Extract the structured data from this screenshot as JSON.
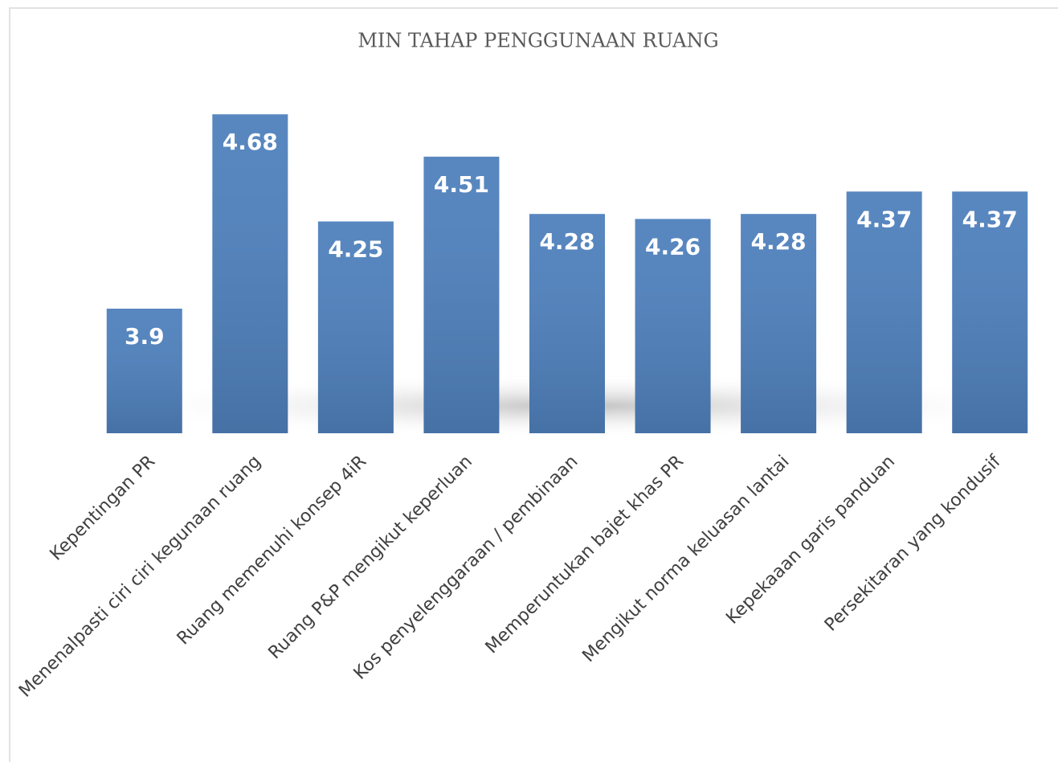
{
  "chart_data": {
    "type": "bar",
    "title": "MIN TAHAP PENGGUNAAN RUANG",
    "categories": [
      "Kepentingan PR",
      "Menenalpasti ciri ciri kegunaan ruang",
      "Ruang memenuhi konsep 4iR",
      "Ruang P&P mengikut keperluan",
      "Kos penyelenggaraan / pembinaan",
      "Memperuntukan bajet khas PR",
      "Mengikut norma keluasan lantai",
      "Kepekaaan garis panduan",
      "Persekitaran yang kondusif"
    ],
    "values": [
      3.9,
      4.68,
      4.25,
      4.51,
      4.28,
      4.26,
      4.28,
      4.37,
      4.37
    ],
    "color": "#4f81bd",
    "ylim": [
      3.4,
      4.8
    ]
  }
}
